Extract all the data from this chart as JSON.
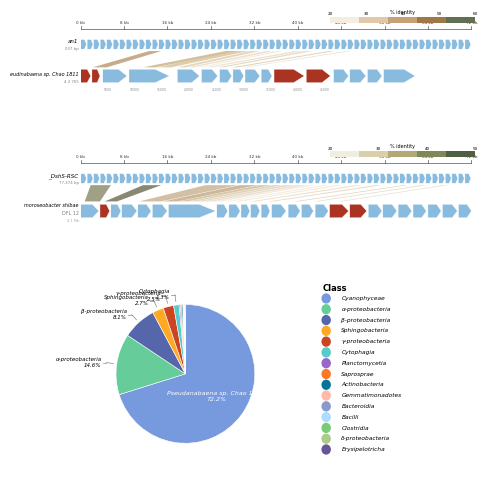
{
  "pie_sizes": [
    72.2,
    14.6,
    8.1,
    2.7,
    2.5,
    1.3,
    0.3,
    0.3,
    0.3,
    0.1,
    0.1,
    0.1,
    0.1,
    0.1,
    0.1
  ],
  "pie_colors": [
    "#7799dd",
    "#66cc99",
    "#5566aa",
    "#ffaa22",
    "#cc4422",
    "#55cccc",
    "#9966cc",
    "#ff7722",
    "#007799",
    "#ffbbaa",
    "#8899cc",
    "#aaddff",
    "#77cc77",
    "#aacc88",
    "#665599"
  ],
  "pie_labels": [
    "Pseudanabaena sp. Chao 1811",
    "α-proteobacteria",
    "β-proteobacteria",
    "Sphingobacteria",
    "γ-proteobacteria",
    "Cytophagia",
    "Planctomycetia",
    "Saprosprae",
    "Actinobacteria",
    "Gemmatimonadotes",
    "Bacteroidia",
    "Bacilli",
    "Clostridia",
    "δ-proteobacteria",
    "Erysipelotricha"
  ],
  "legend_classes": [
    "Cyanophyceae",
    "α-proteobacteria",
    "β-proteobacteria",
    "Sphingobacteria",
    "γ-proteobacteria",
    "Cytophagia",
    "Planctomycetia",
    "Saprosprae",
    "Actinobacteria",
    "Gemmatimonadotes",
    "Bacteroidia",
    "Bacilli",
    "Clostridia",
    "δ-proteobacteria",
    "Erysipelotricha"
  ],
  "legend_colors": [
    "#7799dd",
    "#66cc99",
    "#5566aa",
    "#ffaa22",
    "#cc4422",
    "#55cccc",
    "#9966cc",
    "#ff7722",
    "#007799",
    "#ffbbaa",
    "#8899cc",
    "#aaddff",
    "#77cc77",
    "#aacc88",
    "#665599"
  ],
  "cb_colors_top": [
    "#f5ede0",
    "#e0c8a8",
    "#c8a078",
    "#a07848",
    "#607050"
  ],
  "cb_colors_bot": [
    "#f0eee0",
    "#d8d0a8",
    "#b0aa78",
    "#808858",
    "#506040"
  ],
  "track1_gene_color": "#88bbdd",
  "track1_dark_color": "#aa3322",
  "bg": "#ffffff"
}
